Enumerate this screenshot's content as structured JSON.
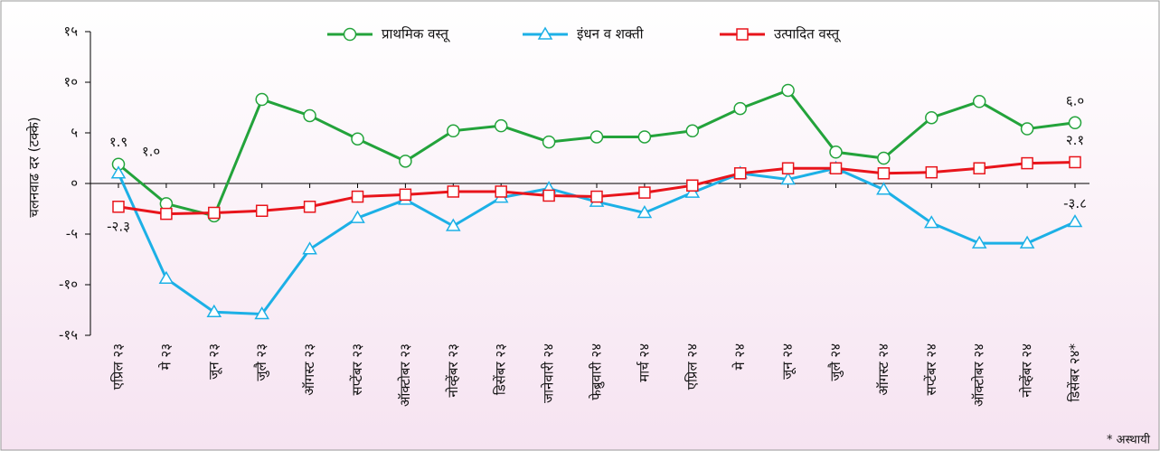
{
  "chart_data": {
    "type": "line",
    "ylabel": "चलनवाढ दर (टक्के)",
    "footnote": "* अस्थायी",
    "categories": [
      "एप्रिल २३",
      "मे २३",
      "जून २३",
      "जुलै २३",
      "ऑगस्ट २३",
      "सप्टेंबर २३",
      "ऑक्टोबर २३",
      "नोव्हेंबर २३",
      "डिसेंबर २३",
      "जानेवारी २४",
      "फेब्रुवारी २४",
      "मार्च २४",
      "एप्रिल २४",
      "मे २४",
      "जून २४",
      "जुलै २४",
      "ऑगस्ट २४",
      "सप्टेंबर २४",
      "ऑक्टोबर २४",
      "नोव्हेंबर २४",
      "डिसेंबर २४*"
    ],
    "series": [
      {
        "name": "प्राथमिक वस्तू",
        "color": "#23a33b",
        "marker": "circle",
        "values": [
          1.9,
          -2.0,
          -3.2,
          8.3,
          6.7,
          4.4,
          2.2,
          5.2,
          5.7,
          4.1,
          4.6,
          4.6,
          5.2,
          7.4,
          9.2,
          3.1,
          2.5,
          6.5,
          8.1,
          5.4,
          6.0
        ],
        "value_labels": [
          "१.९",
          null,
          null,
          null,
          null,
          null,
          null,
          null,
          null,
          null,
          null,
          null,
          null,
          null,
          null,
          null,
          null,
          null,
          null,
          null,
          "६.०"
        ]
      },
      {
        "name": "इंधन व शक्ती",
        "color": "#1cb0e6",
        "marker": "triangle",
        "values": [
          1.0,
          -9.4,
          -12.7,
          -12.9,
          -6.5,
          -3.4,
          -1.6,
          -4.2,
          -1.4,
          -0.5,
          -1.8,
          -2.9,
          -0.9,
          1.0,
          0.4,
          1.5,
          -0.6,
          -3.9,
          -5.9,
          -5.9,
          -3.8
        ],
        "value_labels": [
          "१.०",
          null,
          null,
          null,
          null,
          null,
          null,
          null,
          null,
          null,
          null,
          null,
          null,
          null,
          null,
          null,
          null,
          null,
          null,
          null,
          "-३.८"
        ]
      },
      {
        "name": "उत्पादित वस्तू",
        "color": "#e8141b",
        "marker": "square",
        "values": [
          -2.3,
          -3.0,
          -2.9,
          -2.7,
          -2.3,
          -1.3,
          -1.1,
          -0.8,
          -0.8,
          -1.2,
          -1.3,
          -0.9,
          -0.2,
          1.0,
          1.5,
          1.5,
          1.0,
          1.1,
          1.5,
          2.0,
          2.1
        ],
        "value_labels": [
          "-२.३",
          null,
          null,
          null,
          null,
          null,
          null,
          null,
          null,
          null,
          null,
          null,
          null,
          null,
          null,
          null,
          null,
          null,
          null,
          null,
          "२.१"
        ]
      }
    ],
    "ylim": [
      -15,
      15
    ],
    "yticks": [
      {
        "value": -15,
        "label": "-१५"
      },
      {
        "value": -10,
        "label": "-१०"
      },
      {
        "value": -5,
        "label": "-५"
      },
      {
        "value": 0,
        "label": "०"
      },
      {
        "value": 5,
        "label": "५"
      },
      {
        "value": 10,
        "label": "१०"
      },
      {
        "value": 15,
        "label": "१५"
      }
    ],
    "legend": "top"
  }
}
